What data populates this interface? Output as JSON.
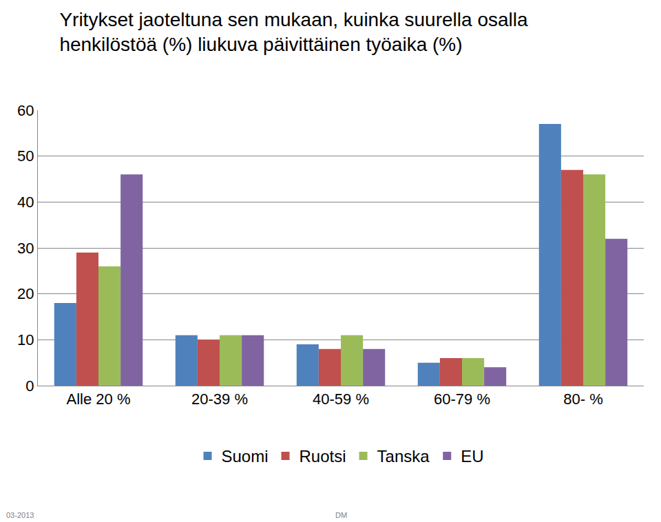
{
  "chart_data": {
    "type": "bar",
    "title": "Yritykset jaoteltuna sen mukaan, kuinka suurella osalla\nhenkilöstöä (%) liukuva päivittäinen työaika (%)",
    "categories": [
      "Alle 20 %",
      "20-39 %",
      "40-59 %",
      "60-79 %",
      "80- %"
    ],
    "series": [
      {
        "name": "Suomi",
        "color": "#4f81bd",
        "values": [
          18,
          11,
          9,
          5,
          57
        ]
      },
      {
        "name": "Ruotsi",
        "color": "#c0504d",
        "values": [
          29,
          10,
          8,
          6,
          47
        ]
      },
      {
        "name": "Tanska",
        "color": "#9bbb59",
        "values": [
          26,
          11,
          11,
          6,
          46
        ]
      },
      {
        "name": "EU",
        "color": "#8064a2",
        "values": [
          46,
          11,
          8,
          4,
          32
        ]
      }
    ],
    "ylim": [
      0,
      60
    ],
    "yticks": [
      0,
      10,
      20,
      30,
      40,
      50,
      60
    ],
    "grid": true,
    "legend": "bottom",
    "annotations": [
      "03-2013",
      "DM"
    ]
  }
}
